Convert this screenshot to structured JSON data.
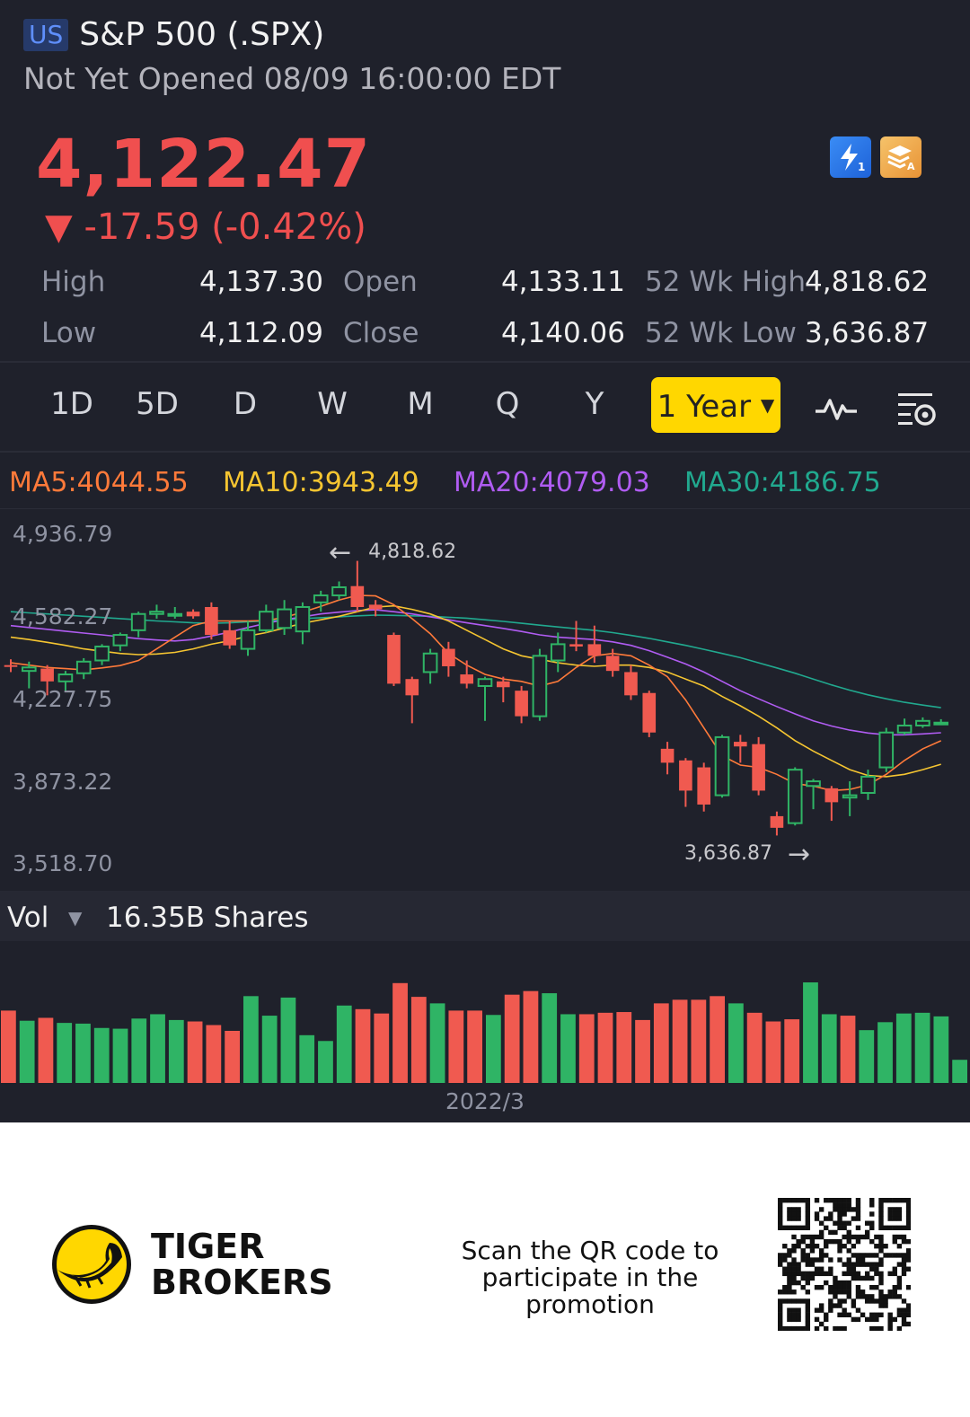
{
  "header": {
    "market": "US",
    "title": "S&P 500 (.SPX)",
    "status": "Not Yet Opened 08/09 16:00:00 EDT"
  },
  "quote": {
    "price": "4,122.47",
    "change": "▼ -17.59 (-0.42%)",
    "icon_1": "lightning-icon",
    "icon_2": "stack-icon"
  },
  "stats": [
    {
      "label": "High",
      "value": "4,137.30"
    },
    {
      "label": "Open",
      "value": "4,133.11"
    },
    {
      "label": "52 Wk High",
      "value": "4,818.62"
    },
    {
      "label": "Low",
      "value": "4,112.09"
    },
    {
      "label": "Close",
      "value": "4,140.06"
    },
    {
      "label": "52 Wk Low",
      "value": "3,636.87"
    }
  ],
  "tabs": [
    "1D",
    "5D",
    "D",
    "W",
    "M",
    "Q",
    "Y"
  ],
  "range": {
    "label": "1 Year"
  },
  "ma": {
    "ma5": "MA5:4044.55",
    "ma10": "MA10:3943.49",
    "ma20": "MA20:4079.03",
    "ma30": "MA30:4186.75"
  },
  "colors": {
    "up": "#2fb465",
    "down": "#f05a50",
    "ma5": "#ff7a3a",
    "ma10": "#f5c531",
    "ma20": "#b05cf2",
    "ma30": "#21a98f",
    "accent": "#ffd700"
  },
  "chart_data": {
    "type": "candlestick",
    "y_ticks": [
      "4,936.79",
      "4,582.27",
      "4,227.75",
      "3,873.22",
      "3,518.70"
    ],
    "ylim": [
      3518.7,
      4936.79
    ],
    "high_marker": "4,818.62",
    "low_marker": "3,636.87",
    "x_label": "2022/3",
    "candles": [
      [
        4370,
        4368,
        4395,
        4340
      ],
      [
        4345,
        4360,
        4385,
        4270
      ],
      [
        4355,
        4300,
        4370,
        4240
      ],
      [
        4300,
        4330,
        4345,
        4260
      ],
      [
        4335,
        4385,
        4400,
        4310
      ],
      [
        4390,
        4450,
        4460,
        4370
      ],
      [
        4455,
        4500,
        4510,
        4430
      ],
      [
        4520,
        4590,
        4600,
        4490
      ],
      [
        4590,
        4600,
        4630,
        4570
      ],
      [
        4590,
        4590,
        4620,
        4570
      ],
      [
        4600,
        4580,
        4610,
        4570
      ],
      [
        4620,
        4500,
        4640,
        4480
      ],
      [
        4520,
        4455,
        4560,
        4440
      ],
      [
        4440,
        4520,
        4560,
        4410
      ],
      [
        4520,
        4600,
        4630,
        4510
      ],
      [
        4530,
        4610,
        4650,
        4500
      ],
      [
        4515,
        4620,
        4640,
        4460
      ],
      [
        4640,
        4670,
        4690,
        4600
      ],
      [
        4670,
        4705,
        4730,
        4650
      ],
      [
        4710,
        4620,
        4818.62,
        4600
      ],
      [
        4630,
        4610,
        4650,
        4580
      ],
      [
        4500,
        4290,
        4510,
        4280
      ],
      [
        4310,
        4240,
        4320,
        4120
      ],
      [
        4340,
        4420,
        4440,
        4290
      ],
      [
        4440,
        4365,
        4470,
        4320
      ],
      [
        4330,
        4290,
        4390,
        4270
      ],
      [
        4280,
        4310,
        4320,
        4130
      ],
      [
        4300,
        4275,
        4320,
        4210
      ],
      [
        4260,
        4150,
        4280,
        4120
      ],
      [
        4150,
        4410,
        4440,
        4130
      ],
      [
        4390,
        4460,
        4510,
        4340
      ],
      [
        4460,
        4450,
        4560,
        4430
      ],
      [
        4460,
        4410,
        4540,
        4380
      ],
      [
        4410,
        4345,
        4440,
        4320
      ],
      [
        4340,
        4240,
        4370,
        4220
      ],
      [
        4250,
        4080,
        4260,
        4060
      ],
      [
        4010,
        3950,
        4040,
        3900
      ],
      [
        3960,
        3830,
        3970,
        3760
      ],
      [
        3930,
        3770,
        3950,
        3740
      ],
      [
        3810,
        4060,
        4070,
        3800
      ],
      [
        4040,
        4020,
        4070,
        3950
      ],
      [
        4030,
        3830,
        4060,
        3810
      ],
      [
        3720,
        3670,
        3740,
        3636.87
      ],
      [
        3690,
        3920,
        3930,
        3680
      ],
      [
        3850,
        3870,
        3880,
        3750
      ],
      [
        3840,
        3780,
        3850,
        3700
      ],
      [
        3800,
        3810,
        3870,
        3720
      ],
      [
        3820,
        3890,
        3920,
        3790
      ],
      [
        3930,
        4080,
        4100,
        3910
      ],
      [
        4080,
        4110,
        4140,
        4070
      ],
      [
        4110,
        4130,
        4145,
        4100
      ],
      [
        4115,
        4122.47,
        4137.3,
        4112.09
      ]
    ],
    "ma5": [
      4380,
      4370,
      4360,
      4355,
      4350,
      4358,
      4368,
      4390,
      4440,
      4490,
      4540,
      4560,
      4560,
      4560,
      4562,
      4575,
      4598,
      4623,
      4650,
      4670,
      4668,
      4630,
      4570,
      4505,
      4420,
      4370,
      4330,
      4310,
      4300,
      4280,
      4300,
      4360,
      4410,
      4420,
      4410,
      4370,
      4320,
      4220,
      4100,
      3980,
      3940,
      3930,
      3900,
      3860,
      3850,
      3830,
      3835,
      3855,
      3900,
      3960,
      4010,
      4044.55
    ],
    "ma10": [
      4490,
      4480,
      4468,
      4455,
      4440,
      4430,
      4420,
      4415,
      4418,
      4425,
      4440,
      4460,
      4475,
      4495,
      4510,
      4530,
      4550,
      4565,
      4580,
      4600,
      4620,
      4625,
      4610,
      4590,
      4560,
      4520,
      4480,
      4440,
      4410,
      4395,
      4380,
      4370,
      4365,
      4370,
      4370,
      4360,
      4340,
      4310,
      4280,
      4235,
      4195,
      4150,
      4100,
      4045,
      4000,
      3960,
      3920,
      3895,
      3890,
      3900,
      3920,
      3943.49
    ],
    "ma20": [
      4540,
      4532,
      4524,
      4516,
      4508,
      4500,
      4492,
      4484,
      4478,
      4474,
      4480,
      4495,
      4512,
      4532,
      4550,
      4565,
      4578,
      4590,
      4598,
      4605,
      4608,
      4600,
      4590,
      4578,
      4565,
      4552,
      4540,
      4528,
      4515,
      4500,
      4490,
      4485,
      4480,
      4470,
      4455,
      4432,
      4404,
      4375,
      4340,
      4300,
      4260,
      4225,
      4192,
      4160,
      4130,
      4108,
      4090,
      4078,
      4070,
      4070,
      4074,
      4079.03
    ],
    "ma30": [
      4600,
      4595,
      4590,
      4585,
      4580,
      4575,
      4570,
      4565,
      4560,
      4556,
      4552,
      4550,
      4552,
      4556,
      4560,
      4564,
      4570,
      4574,
      4578,
      4582,
      4585,
      4584,
      4582,
      4580,
      4576,
      4572,
      4565,
      4558,
      4550,
      4542,
      4534,
      4527,
      4520,
      4510,
      4498,
      4485,
      4470,
      4455,
      4438,
      4420,
      4402,
      4380,
      4358,
      4335,
      4310,
      4285,
      4262,
      4242,
      4225,
      4210,
      4198,
      4186.75
    ],
    "volume": {
      "label": "Vol",
      "total": "16.35B Shares",
      "values": [
        1.0,
        0.86,
        0.9,
        0.83,
        0.82,
        0.76,
        0.75,
        0.89,
        0.95,
        0.87,
        0.85,
        0.8,
        0.72,
        1.2,
        0.93,
        1.18,
        0.66,
        0.58,
        1.07,
        1.02,
        0.96,
        1.38,
        1.19,
        1.1,
        1.0,
        1.0,
        0.94,
        1.22,
        1.27,
        1.24,
        0.95,
        0.95,
        0.97,
        0.98,
        0.87,
        1.1,
        1.15,
        1.15,
        1.2,
        1.1,
        0.97,
        0.85,
        0.88,
        1.39,
        0.95,
        0.93,
        0.73,
        0.84,
        0.96,
        0.97,
        0.92,
        0.32
      ]
    }
  },
  "footer": {
    "brand_line1": "TIGER",
    "brand_line2": "BROKERS",
    "promo": "Scan the QR code to participate in the promotion",
    "qr": "qr-code"
  }
}
